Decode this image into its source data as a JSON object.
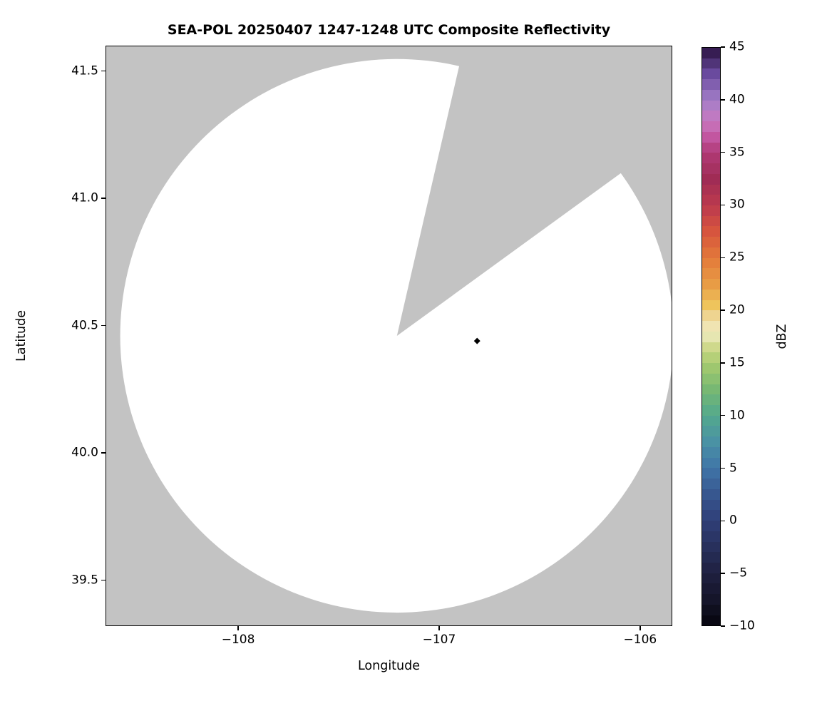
{
  "title": "SEA-POL 20250407 1247-1248 UTC Composite Reflectivity",
  "axes": {
    "xlabel": "Longitude",
    "ylabel": "Latitude",
    "xlim": [
      -108.66,
      -105.84
    ],
    "ylim": [
      39.32,
      41.6
    ],
    "xticks": [
      -108,
      -107,
      -106
    ],
    "xtick_labels": [
      "−108",
      "−107",
      "−106"
    ],
    "yticks": [
      41.5,
      41.0,
      40.5,
      40.0,
      39.5
    ],
    "ytick_labels": [
      "41.5",
      "41.0",
      "40.5",
      "40.0",
      "39.5"
    ],
    "grid": false
  },
  "colorbar": {
    "label": "dBZ",
    "vmin": -10,
    "vmax": 45,
    "ticks": [
      45,
      40,
      35,
      30,
      25,
      20,
      15,
      10,
      5,
      0,
      -5,
      -10
    ],
    "tick_labels": [
      "45",
      "40",
      "35",
      "30",
      "25",
      "20",
      "15",
      "10",
      "5",
      "0",
      "−5",
      "−10"
    ],
    "colormap_stops": [
      [
        -10,
        "#06050d"
      ],
      [
        -7.5,
        "#15152a"
      ],
      [
        -5,
        "#1f2040"
      ],
      [
        -2.5,
        "#28305c"
      ],
      [
        0,
        "#2f3f78"
      ],
      [
        2.5,
        "#37578f"
      ],
      [
        5,
        "#4075a8"
      ],
      [
        7.5,
        "#4a92a4"
      ],
      [
        10,
        "#53a98d"
      ],
      [
        12.5,
        "#78b873"
      ],
      [
        15,
        "#a8cb6e"
      ],
      [
        16.5,
        "#cfd98c"
      ],
      [
        18,
        "#f1ecc3"
      ],
      [
        19.5,
        "#eed490"
      ],
      [
        20.5,
        "#eec45c"
      ],
      [
        22.5,
        "#e89c45"
      ],
      [
        25,
        "#e3793a"
      ],
      [
        27.5,
        "#d6553e"
      ],
      [
        30,
        "#bc3a4e"
      ],
      [
        32.5,
        "#a02c55"
      ],
      [
        35,
        "#b03a76"
      ],
      [
        36.5,
        "#c256a0"
      ],
      [
        38,
        "#c878c0"
      ],
      [
        40,
        "#a47fc8"
      ],
      [
        42.5,
        "#6a4a9e"
      ],
      [
        45,
        "#2a1240"
      ]
    ],
    "n_bands": 55
  },
  "colors": {
    "no_data_gray": "#c3c3c3",
    "coverage_white": "#ffffff",
    "marker_black": "#000000",
    "spine": "#000000"
  },
  "chart_data": {
    "type": "heatmap",
    "title": "SEA-POL 20250407 1247-1248 UTC Composite Reflectivity",
    "xlabel": "Longitude",
    "ylabel": "Latitude",
    "xlim": [
      -108.66,
      -105.84
    ],
    "ylim": [
      39.32,
      41.6
    ],
    "value_label": "dBZ",
    "value_range": [
      -10,
      45
    ],
    "grid": false,
    "legend": "colorbar right, -10 to 45 dBZ, ticks every 5",
    "radar_coverage": {
      "center_lon": -107.21,
      "center_lat": 40.46,
      "radius_deg_lat": 1.09,
      "blocked_sector_azimuth_deg": [
        13,
        54
      ],
      "coverage_value": "no echoes above -10 dBZ (coverage area rendered white)",
      "outside_coverage": "no-data gray"
    },
    "point_marker": {
      "lon": -106.81,
      "lat": 40.44,
      "shape": "diamond",
      "color": "#000000"
    }
  }
}
